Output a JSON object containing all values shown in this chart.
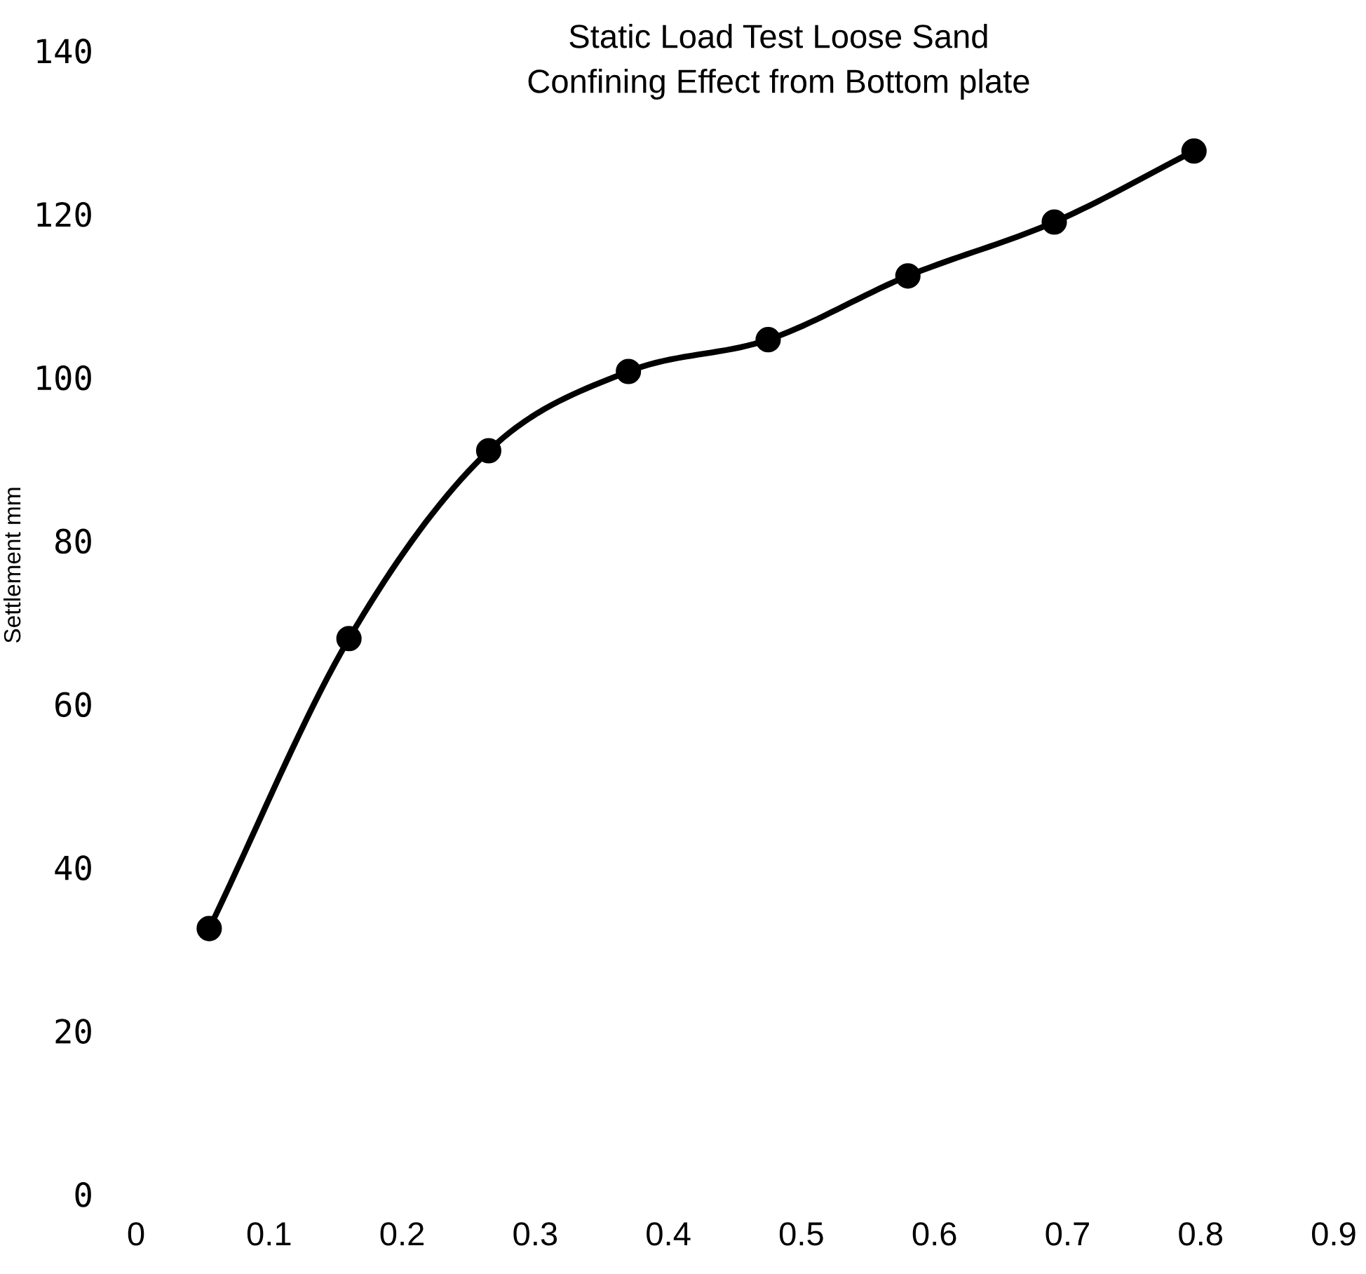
{
  "chart_data": {
    "type": "line",
    "title": "Static Load Test Loose Sand",
    "subtitle": "Confining Effect from Bottom plate",
    "ylabel": "Settlement mm",
    "x": [
      0.055,
      0.16,
      0.265,
      0.37,
      0.475,
      0.58,
      0.69,
      0.795
    ],
    "series": [
      {
        "color": "#000000",
        "values": [
          32.5,
          68,
          91,
          100.7,
          104.6,
          112.4,
          119,
          127.7
        ]
      }
    ],
    "xlim": [
      0,
      0.9
    ],
    "xticks": [
      0,
      0.1,
      0.2,
      0.3,
      0.4,
      0.5,
      0.6,
      0.7,
      0.8,
      0.9
    ],
    "ylim": [
      0,
      140
    ],
    "yticks": [
      0,
      20,
      40,
      60,
      80,
      100,
      120,
      140
    ],
    "marker": "circle",
    "line_style": "solid",
    "grid": false,
    "legend": false
  }
}
